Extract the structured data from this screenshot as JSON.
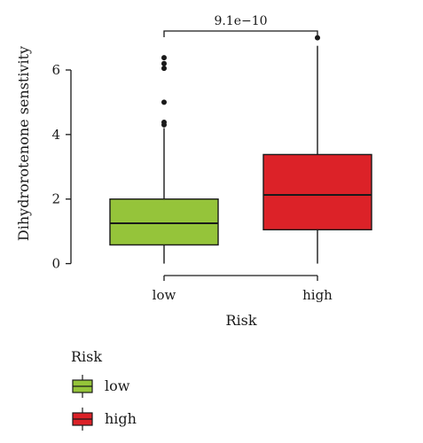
{
  "chart_data": {
    "type": "boxplot",
    "xlabel": "Risk",
    "ylabel": "Dihydrorotenone senstivity",
    "ylim": [
      -0.15,
      7.4
    ],
    "yticks": [
      0,
      2,
      4,
      6
    ],
    "categories": [
      "low",
      "high"
    ],
    "boxes": [
      {
        "name": "low",
        "color": "#95c43a",
        "whisker_low": 0.0,
        "q1": 0.58,
        "median": 1.25,
        "q3": 2.0,
        "whisker_high": 4.2,
        "outliers": [
          4.3,
          4.38,
          5.0,
          6.05,
          6.2,
          6.38
        ]
      },
      {
        "name": "high",
        "color": "#dc2228",
        "whisker_low": 0.0,
        "q1": 1.05,
        "median": 2.13,
        "q3": 3.38,
        "whisker_high": 6.75,
        "outliers": [
          7.0
        ]
      }
    ],
    "annotation": {
      "text": "9.1e−10",
      "between": [
        "low",
        "high"
      ]
    },
    "grid": false,
    "legend": {
      "title": "Risk",
      "position": "bottom-left",
      "items": [
        {
          "label": "low",
          "color": "#95c43a"
        },
        {
          "label": "high",
          "color": "#dc2228"
        }
      ]
    }
  }
}
